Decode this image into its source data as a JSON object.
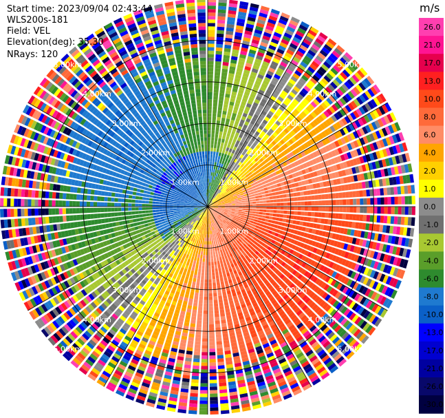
{
  "info": {
    "start_time": "Start time: 2023/09/04 02:43:44",
    "instrument": "WLS200s-181",
    "field": "Field: VEL",
    "elevation": "Elevation(deg): 35.30",
    "nrays": "NRays: 120"
  },
  "chart_data": {
    "type": "heatmap",
    "projection": "polar-ppi",
    "field": "VEL",
    "units": "m/s",
    "elevation_deg": 35.3,
    "n_rays": 120,
    "range_rings_km": [
      1.0,
      2.0,
      3.0,
      4.0
    ],
    "ring_labels": [
      "1.00km",
      "2.00km",
      "3.00km",
      "4.00km",
      "5.00km"
    ],
    "max_range_km": 5.0,
    "colorbar": {
      "unit": "m/s",
      "tick_labels": [
        "26.0",
        "21.0",
        "17.0",
        "13.0",
        "10.0",
        "8.0",
        "6.0",
        "4.0",
        "2.0",
        "1.0",
        "0.0",
        "-1.0",
        "-2.0",
        "-4.0",
        "-6.0",
        "-8.0",
        "-10.0",
        "-13.0",
        "-17.0",
        "-21.0",
        "-26.0",
        "-30.0"
      ],
      "colors": [
        "#ff3fb0",
        "#ff1493",
        "#e6004d",
        "#ff2020",
        "#ff4a1a",
        "#ff6a3a",
        "#ff8c66",
        "#ffa500",
        "#ffd000",
        "#ffff00",
        "#8c8c8c",
        "#707070",
        "#a8c832",
        "#5a9e2a",
        "#2e8b2e",
        "#1f7ad0",
        "#0b60c8",
        "#0000ff",
        "#0000d0",
        "#0000a0",
        "#08086a",
        "#000040"
      ]
    },
    "pattern": {
      "toward_radar_sector": "north-west (negative, blue/green)",
      "away_from_radar_sector": "south-east (positive, orange/red)",
      "far_range": "noisy/speckled beyond ~3.8 km"
    }
  }
}
